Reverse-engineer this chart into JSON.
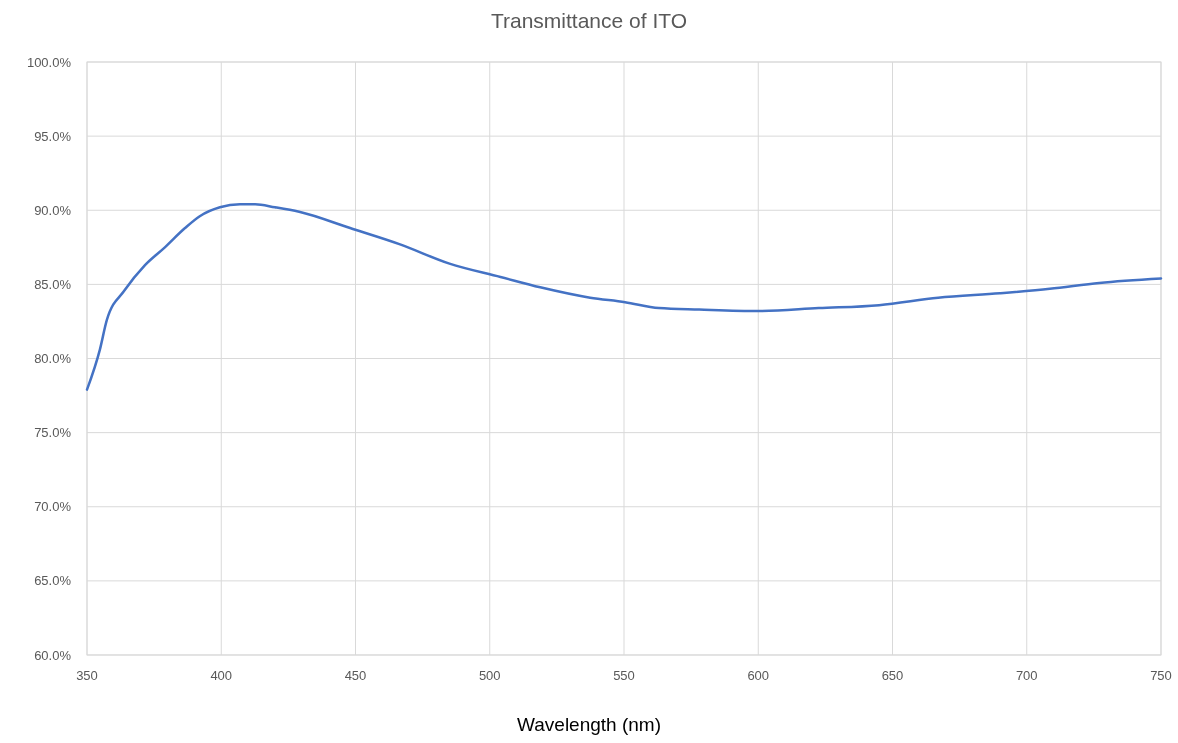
{
  "chart_data": {
    "type": "line",
    "title": "Transmittance of ITO",
    "xlabel": "Wavelength (nm)",
    "x": [
      350,
      354.8,
      357.4,
      364,
      371.6,
      379,
      386.5,
      392,
      399.5,
      407,
      412.6,
      420,
      429,
      448,
      466.6,
      485,
      504,
      518.8,
      537.4,
      550.4,
      563,
      578,
      600,
      622.5,
      645,
      667,
      690,
      708.6,
      727,
      750
    ],
    "series": [
      {
        "color": "#4472c4",
        "values": [
          77.9,
          80.6,
          82.6,
          84.6,
          86.3,
          87.5,
          88.8,
          89.6,
          90.2,
          90.4,
          90.4,
          90.2,
          89.9,
          88.8,
          87.7,
          86.4,
          85.5,
          84.8,
          84.1,
          83.8,
          83.4,
          83.3,
          83.2,
          83.4,
          83.6,
          84.1,
          84.4,
          84.7,
          85.1,
          85.4
        ]
      }
    ],
    "xlim": [
      350,
      750
    ],
    "xticks": [
      350,
      400,
      450,
      500,
      550,
      600,
      650,
      700,
      750
    ],
    "ylim": [
      60,
      100
    ],
    "yticks": [
      {
        "value": 60,
        "label": "60.0%"
      },
      {
        "value": 65,
        "label": "65.0%"
      },
      {
        "value": 70,
        "label": "70.0%"
      },
      {
        "value": 75,
        "label": "75.0%"
      },
      {
        "value": 80,
        "label": "80.0%"
      },
      {
        "value": 85,
        "label": "85.0%"
      },
      {
        "value": 90,
        "label": "90.0%"
      },
      {
        "value": 95,
        "label": "95.0%"
      },
      {
        "value": 100,
        "label": "100.0%"
      }
    ],
    "grid": true,
    "marker": "none",
    "line_style": "solid"
  }
}
